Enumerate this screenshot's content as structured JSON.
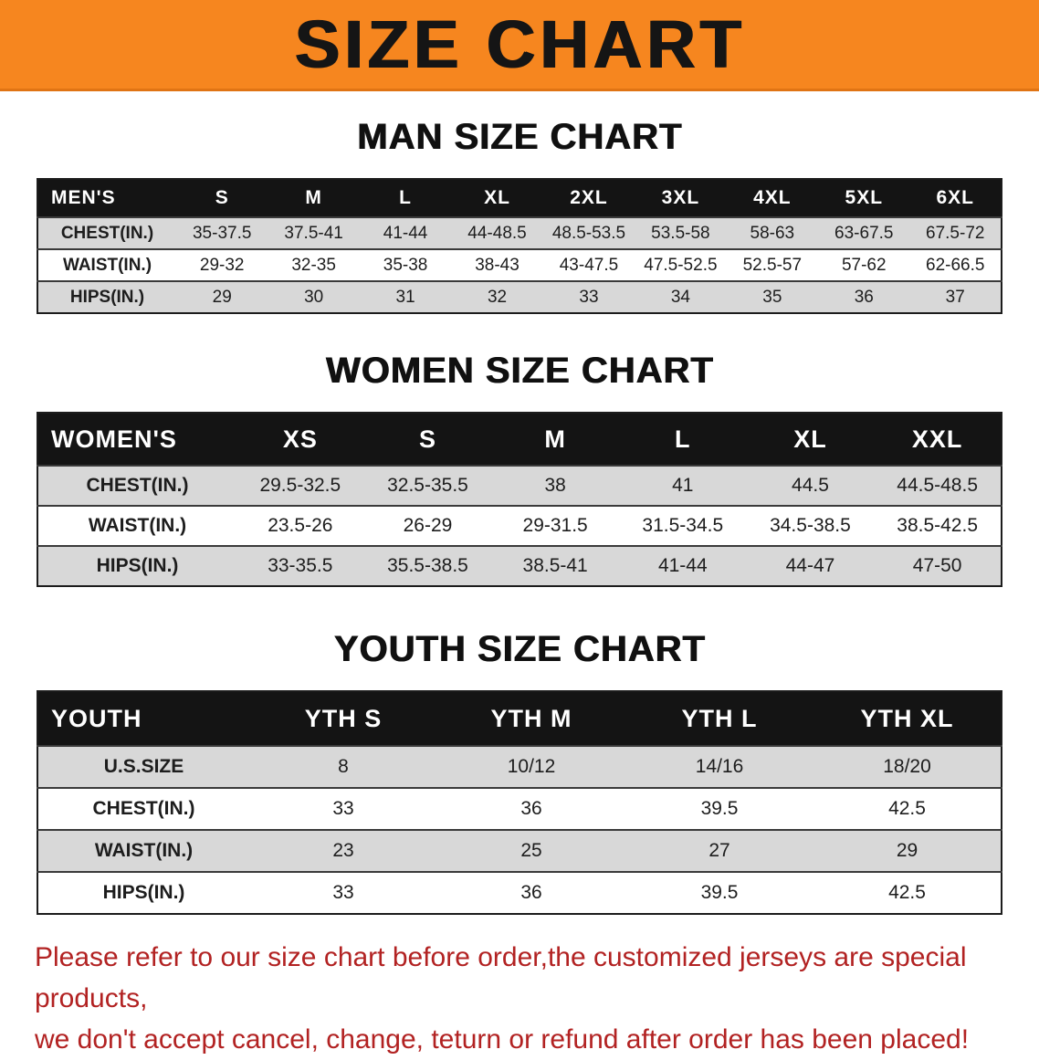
{
  "banner": {
    "title": "SIZE CHART",
    "bg_color": "#f6861f",
    "text_color": "#151515"
  },
  "sections": [
    {
      "heading": "MAN SIZE CHART",
      "table": {
        "header": [
          "MEN'S",
          "S",
          "M",
          "L",
          "XL",
          "2XL",
          "3XL",
          "4XL",
          "5XL",
          "6XL"
        ],
        "rows": [
          [
            "CHEST(IN.)",
            "35-37.5",
            "37.5-41",
            "41-44",
            "44-48.5",
            "48.5-53.5",
            "53.5-58",
            "58-63",
            "63-67.5",
            "67.5-72"
          ],
          [
            "WAIST(IN.)",
            "29-32",
            "32-35",
            "35-38",
            "38-43",
            "43-47.5",
            "47.5-52.5",
            "52.5-57",
            "57-62",
            "62-66.5"
          ],
          [
            "HIPS(IN.)",
            "29",
            "30",
            "31",
            "32",
            "33",
            "34",
            "35",
            "36",
            "37"
          ]
        ]
      }
    },
    {
      "heading": "WOMEN SIZE CHART",
      "table": {
        "header": [
          "WOMEN'S",
          "XS",
          "S",
          "M",
          "L",
          "XL",
          "XXL"
        ],
        "rows": [
          [
            "CHEST(IN.)",
            "29.5-32.5",
            "32.5-35.5",
            "38",
            "41",
            "44.5",
            "44.5-48.5"
          ],
          [
            "WAIST(IN.)",
            "23.5-26",
            "26-29",
            "29-31.5",
            "31.5-34.5",
            "34.5-38.5",
            "38.5-42.5"
          ],
          [
            "HIPS(IN.)",
            "33-35.5",
            "35.5-38.5",
            "38.5-41",
            "41-44",
            "44-47",
            "47-50"
          ]
        ]
      }
    },
    {
      "heading": "YOUTH SIZE CHART",
      "table": {
        "header": [
          "YOUTH",
          "YTH S",
          "YTH M",
          "YTH L",
          "YTH XL"
        ],
        "rows": [
          [
            "U.S.SIZE",
            "8",
            "10/12",
            "14/16",
            "18/20"
          ],
          [
            "CHEST(IN.)",
            "33",
            "36",
            "39.5",
            "42.5"
          ],
          [
            "WAIST(IN.)",
            "23",
            "25",
            "27",
            "29"
          ],
          [
            "HIPS(IN.)",
            "33",
            "36",
            "39.5",
            "42.5"
          ]
        ]
      }
    }
  ],
  "footer": {
    "line1": "Please refer to our size chart before order,the customized jerseys are special products,",
    "line2": "we don't accept cancel, change, teturn or refund after order has been placed!",
    "text_color": "#b22222"
  }
}
